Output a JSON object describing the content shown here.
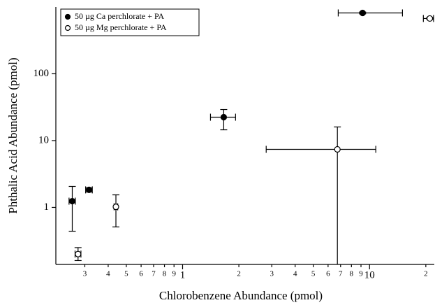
{
  "chart_data": {
    "type": "scatter",
    "x_label": "Chlorobenzene Abundance (pmol)",
    "y_label": "Phthalic Acid Abundance (pmol)",
    "x_log": true,
    "y_log": true,
    "xlim": [
      0.21,
      22.2
    ],
    "ylim": [
      0.14,
      1000
    ],
    "xticks": [
      {
        "value": 0.3,
        "label": "3"
      },
      {
        "value": 0.4,
        "label": "4"
      },
      {
        "value": 0.5,
        "label": "5"
      },
      {
        "value": 0.6,
        "label": "6"
      },
      {
        "value": 0.7,
        "label": "7"
      },
      {
        "value": 0.8,
        "label": "8"
      },
      {
        "value": 0.9,
        "label": "9"
      },
      1,
      {
        "value": 2,
        "label": "2"
      },
      {
        "value": 3,
        "label": "3"
      },
      {
        "value": 4,
        "label": "4"
      },
      {
        "value": 5,
        "label": "5"
      },
      {
        "value": 6,
        "label": "6"
      },
      {
        "value": 7,
        "label": "7"
      },
      {
        "value": 8,
        "label": "8"
      },
      {
        "value": 9,
        "label": "9"
      },
      10,
      {
        "value": 20,
        "label": "2"
      }
    ],
    "yticks": [
      1,
      10,
      100
    ],
    "legend": "upper-left",
    "series": [
      {
        "name": "50 µg Ca perchlorate + PA",
        "color": "#000000",
        "filled": true,
        "x": [
          0.257,
          0.316,
          1.66,
          9.18
        ],
        "values": [
          1.24,
          1.83,
          22.4,
          815
        ],
        "x_low": [
          0.247,
          0.303,
          1.41,
          6.8
        ],
        "x_high": [
          0.267,
          0.329,
          1.92,
          15.0
        ],
        "y_low": [
          0.44,
          1.7,
          14.5,
          790
        ],
        "y_high": [
          2.06,
          1.96,
          29.2,
          840
        ]
      },
      {
        "name": "50 µg Mg perchlorate + PA",
        "color": "#000000",
        "filled": false,
        "x": [
          0.276,
          0.44,
          6.73,
          21
        ],
        "values": [
          0.2,
          1.02,
          7.4,
          673
        ],
        "x_low": [
          0.266,
          0.43,
          2.8,
          19.4
        ],
        "x_high": [
          0.286,
          0.45,
          10.8,
          22
        ],
        "y_low": [
          0.16,
          0.51,
          0.14,
          650
        ],
        "y_high": [
          0.25,
          1.54,
          16,
          700
        ]
      }
    ]
  }
}
